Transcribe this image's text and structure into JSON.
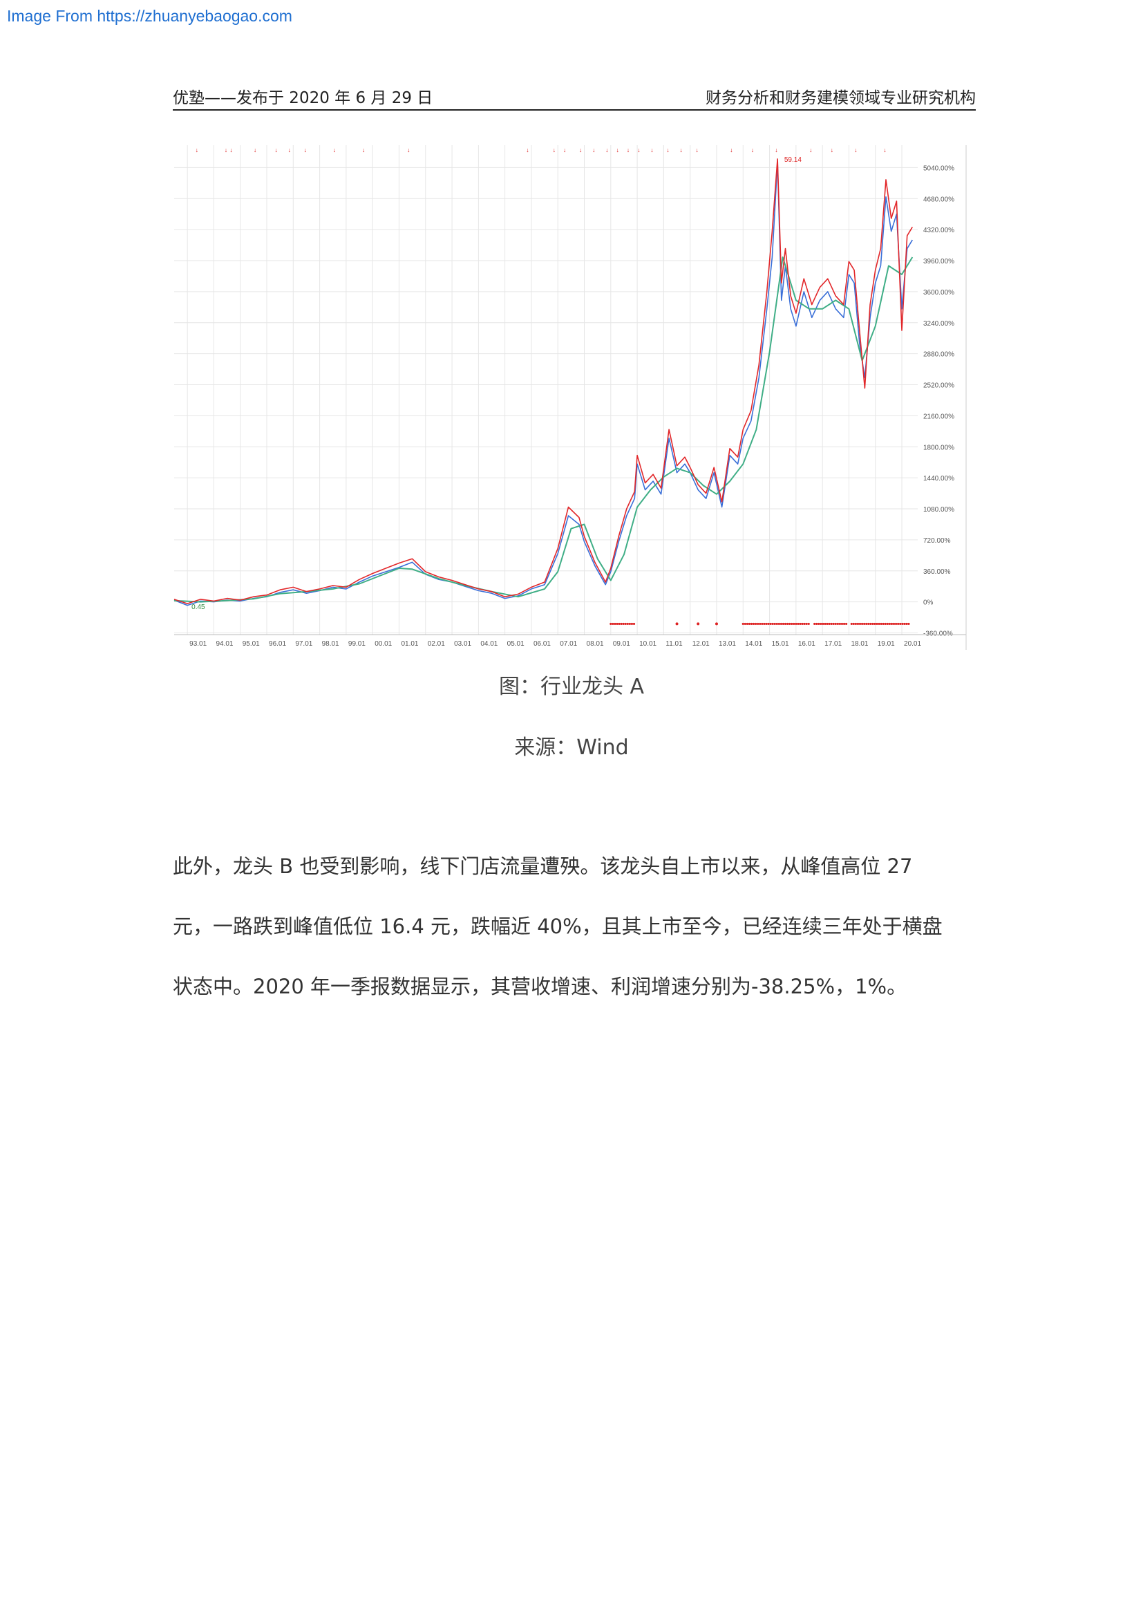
{
  "watermark": "Image From https://zhuanyebaogao.com",
  "header": {
    "left": "优塾——发布于 2020 年 6 月 29 日",
    "right": "财务分析和财务建模领域专业研究机构"
  },
  "figure": {
    "caption": "图：行业龙头 A",
    "source": "来源：Wind"
  },
  "paragraph": {
    "line1": "此外，龙头 B 也受到影响，线下门店流量遭殃。该龙头自上市以来，从峰值高位 27",
    "line2": "元，一路跌到峰值低位 16.4 元，跌幅近 40%，且其上市至今，已经连续三年处于横盘",
    "line3": "状态中。2020 年一季报数据显示，其营收增速、利润增速分别为-38.25%，1%。"
  },
  "chart_data": {
    "type": "line",
    "y_tick_labels": [
      "5040.00%",
      "4680.00%",
      "4320.00%",
      "3960.00%",
      "3600.00%",
      "3240.00%",
      "2880.00%",
      "2520.00%",
      "2160.00%",
      "1800.00%",
      "1440.00%",
      "1080.00%",
      "720.00%",
      "360.00%",
      "0%",
      "-360.00%"
    ],
    "y_ticks": [
      5040,
      4680,
      4320,
      3960,
      3600,
      3240,
      2880,
      2520,
      2160,
      1800,
      1440,
      1080,
      720,
      360,
      0,
      -360
    ],
    "ylim": [
      -380,
      5300
    ],
    "x_tick_labels": [
      "93.01",
      "94.01",
      "95.01",
      "96.01",
      "97.01",
      "98.01",
      "99.01",
      "00.01",
      "01.01",
      "02.01",
      "03.01",
      "04.01",
      "05.01",
      "06.01",
      "07.01",
      "08.01",
      "09.01",
      "10.01",
      "11.01",
      "12.01",
      "13.01",
      "14.01",
      "15.01",
      "16.01",
      "17.01",
      "18.01",
      "19.01",
      "20.01"
    ],
    "xlim": [
      1992.5,
      2020.6
    ],
    "annotations": [
      {
        "text": "59.14",
        "x": 2015.4,
        "y": 5140
      },
      {
        "text": "0.45",
        "x": 1993.0,
        "y": -50
      }
    ],
    "series": [
      {
        "color": "#3a6fd8",
        "x": [
          1992.5,
          1993.0,
          1993.5,
          1994.0,
          1994.5,
          1995.0,
          1995.5,
          1996.0,
          1996.5,
          1997.0,
          1997.5,
          1998.0,
          1998.5,
          1999.0,
          1999.5,
          2000.0,
          2000.5,
          2001.0,
          2001.5,
          2002.0,
          2002.5,
          2003.0,
          2003.5,
          2004.0,
          2004.5,
          2005.0,
          2005.5,
          2006.0,
          2006.5,
          2007.0,
          2007.4,
          2007.8,
          2008.0,
          2008.4,
          2008.8,
          2009.0,
          2009.3,
          2009.6,
          2009.9,
          2010.0,
          2010.3,
          2010.6,
          2010.9,
          2011.2,
          2011.5,
          2011.8,
          2012.0,
          2012.3,
          2012.6,
          2012.9,
          2013.2,
          2013.5,
          2013.8,
          2014.0,
          2014.3,
          2014.6,
          2014.9,
          2015.1,
          2015.3,
          2015.45,
          2015.6,
          2015.8,
          2016.0,
          2016.3,
          2016.6,
          2016.9,
          2017.2,
          2017.5,
          2017.8,
          2018.0,
          2018.2,
          2018.4,
          2018.6,
          2018.8,
          2019.0,
          2019.2,
          2019.4,
          2019.6,
          2019.8,
          2020.0,
          2020.2,
          2020.4
        ],
        "values": [
          20,
          -40,
          10,
          0,
          20,
          10,
          40,
          60,
          110,
          140,
          100,
          130,
          170,
          150,
          230,
          300,
          350,
          400,
          460,
          320,
          260,
          230,
          180,
          130,
          100,
          40,
          70,
          150,
          200,
          560,
          1000,
          900,
          700,
          420,
          200,
          350,
          700,
          1000,
          1200,
          1600,
          1300,
          1400,
          1250,
          1900,
          1500,
          1600,
          1500,
          1300,
          1200,
          1500,
          1100,
          1700,
          1600,
          1900,
          2100,
          2600,
          3400,
          4000,
          5100,
          3500,
          3900,
          3400,
          3200,
          3600,
          3300,
          3500,
          3600,
          3400,
          3300,
          3800,
          3700,
          3000,
          2600,
          3300,
          3700,
          3900,
          4700,
          4300,
          4500,
          3400,
          4100,
          4200
        ]
      },
      {
        "color": "#3fae86",
        "x": [
          1992.5,
          1993.5,
          1994.5,
          1995.5,
          1996.5,
          1997.5,
          1998.5,
          1999.5,
          2000.5,
          2001.0,
          2001.5,
          2002.5,
          2003.5,
          2004.5,
          2005.5,
          2006.5,
          2007.0,
          2007.5,
          2008.0,
          2008.5,
          2009.0,
          2009.5,
          2010.0,
          2010.5,
          2011.0,
          2011.5,
          2012.0,
          2012.5,
          2013.0,
          2013.5,
          2014.0,
          2014.5,
          2015.0,
          2015.5,
          2016.0,
          2016.5,
          2017.0,
          2017.5,
          2018.0,
          2018.5,
          2019.0,
          2019.5,
          2020.0,
          2020.4
        ],
        "values": [
          15,
          0,
          15,
          35,
          95,
          120,
          150,
          210,
          330,
          390,
          380,
          270,
          190,
          120,
          60,
          150,
          350,
          850,
          900,
          500,
          250,
          550,
          1100,
          1300,
          1450,
          1550,
          1500,
          1350,
          1250,
          1400,
          1600,
          2000,
          2900,
          4000,
          3500,
          3400,
          3400,
          3500,
          3400,
          2800,
          3200,
          3900,
          3800,
          4000
        ]
      },
      {
        "color": "#e2272a",
        "x": [
          1992.5,
          1993.0,
          1993.5,
          1994.0,
          1994.5,
          1995.0,
          1995.5,
          1996.0,
          1996.5,
          1997.0,
          1997.5,
          1998.0,
          1998.5,
          1999.0,
          1999.5,
          2000.0,
          2000.5,
          2001.0,
          2001.5,
          2002.0,
          2002.5,
          2003.0,
          2003.5,
          2004.0,
          2004.5,
          2005.0,
          2005.5,
          2006.0,
          2006.5,
          2007.0,
          2007.4,
          2007.8,
          2008.0,
          2008.4,
          2008.8,
          2009.0,
          2009.3,
          2009.6,
          2009.9,
          2010.0,
          2010.3,
          2010.6,
          2010.9,
          2011.2,
          2011.5,
          2011.8,
          2012.0,
          2012.3,
          2012.6,
          2012.9,
          2013.2,
          2013.5,
          2013.8,
          2014.0,
          2014.3,
          2014.6,
          2014.9,
          2015.1,
          2015.3,
          2015.45,
          2015.6,
          2015.8,
          2016.0,
          2016.3,
          2016.6,
          2016.9,
          2017.2,
          2017.5,
          2017.8,
          2018.0,
          2018.2,
          2018.4,
          2018.6,
          2018.8,
          2019.0,
          2019.2,
          2019.4,
          2019.6,
          2019.8,
          2020.0,
          2020.2,
          2020.4
        ],
        "values": [
          30,
          -20,
          30,
          10,
          40,
          20,
          60,
          80,
          140,
          170,
          120,
          150,
          190,
          170,
          260,
          330,
          390,
          450,
          500,
          350,
          290,
          250,
          200,
          150,
          120,
          60,
          90,
          170,
          230,
          620,
          1100,
          980,
          760,
          460,
          230,
          390,
          760,
          1080,
          1280,
          1700,
          1380,
          1480,
          1320,
          2000,
          1580,
          1680,
          1560,
          1360,
          1260,
          1560,
          1160,
          1780,
          1680,
          2000,
          2220,
          2750,
          3600,
          4300,
          5140,
          3700,
          4100,
          3550,
          3350,
          3750,
          3450,
          3650,
          3750,
          3550,
          3450,
          3950,
          3850,
          3150,
          2480,
          3450,
          3850,
          4100,
          4900,
          4450,
          4650,
          3150,
          4250,
          4350
        ]
      }
    ]
  }
}
